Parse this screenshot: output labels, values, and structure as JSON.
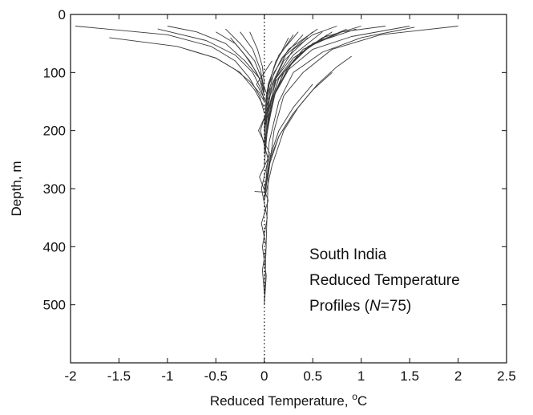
{
  "chart_data": {
    "type": "line",
    "xlabel": "Reduced Temperature, ",
    "xlabel_unit_sup": "o",
    "xlabel_unit": "C",
    "ylabel": "Depth, m",
    "xlim": [
      -2,
      2.5
    ],
    "ylim": [
      0,
      600
    ],
    "y_inverted": true,
    "grid": false,
    "x_ticks": [
      -2,
      -1.5,
      -1,
      -0.5,
      0,
      0.5,
      1,
      1.5,
      2,
      2.5
    ],
    "x_tick_labels": [
      "-2",
      "-1.5",
      "-1",
      "-0.5",
      "0",
      "0.5",
      "1",
      "1.5",
      "2",
      "2.5"
    ],
    "y_ticks": [
      0,
      100,
      200,
      300,
      400,
      500
    ],
    "y_tick_labels": [
      "0",
      "100",
      "200",
      "300",
      "400",
      "500"
    ],
    "zero_reference_line": {
      "x": 0,
      "style": "dotted"
    },
    "annotation": {
      "line1": "South India",
      "line2": "Reduced Temperature",
      "line3_prefix": "Profiles (",
      "line3_italic": "N",
      "line3_suffix": "=75)",
      "placement": "lower-right"
    },
    "profile_count": 75,
    "series": [
      {
        "x": [
          2.0,
          1.2,
          0.7,
          0.4,
          0.2,
          0.1,
          0.04,
          0.0
        ],
        "y": [
          20,
          35,
          60,
          100,
          140,
          200,
          280,
          500
        ]
      },
      {
        "x": [
          1.55,
          1.0,
          0.6,
          0.3,
          0.15,
          0.05,
          0.0
        ],
        "y": [
          22,
          40,
          65,
          100,
          150,
          220,
          320
        ]
      },
      {
        "x": [
          1.5,
          0.9,
          0.5,
          0.25,
          0.1,
          0.0
        ],
        "y": [
          20,
          38,
          60,
          95,
          140,
          220
        ]
      },
      {
        "x": [
          1.25,
          0.8,
          0.5,
          0.3,
          0.12,
          0.0
        ],
        "y": [
          20,
          30,
          50,
          80,
          130,
          220
        ]
      },
      {
        "x": [
          1.0,
          0.6,
          0.35,
          0.15,
          0.05,
          0.0
        ],
        "y": [
          20,
          40,
          70,
          110,
          160,
          260
        ]
      },
      {
        "x": [
          0.95,
          0.5,
          0.25,
          0.1,
          0.0
        ],
        "y": [
          25,
          50,
          90,
          140,
          230
        ]
      },
      {
        "x": [
          0.85,
          0.45,
          0.2,
          0.08,
          0.0
        ],
        "y": [
          25,
          55,
          100,
          150,
          230
        ]
      },
      {
        "x": [
          0.8,
          0.4,
          0.2,
          0.07,
          0.0
        ],
        "y": [
          30,
          60,
          100,
          150,
          240
        ]
      },
      {
        "x": [
          0.75,
          0.5,
          0.3,
          0.12,
          0.0
        ],
        "y": [
          20,
          35,
          60,
          110,
          200
        ]
      },
      {
        "x": [
          0.7,
          0.35,
          0.15,
          0.05,
          0.0
        ],
        "y": [
          30,
          70,
          110,
          160,
          240
        ]
      },
      {
        "x": [
          0.65,
          0.3,
          0.12,
          0.03,
          0.0
        ],
        "y": [
          35,
          75,
          115,
          170,
          240
        ]
      },
      {
        "x": [
          0.6,
          0.3,
          0.12,
          0.02,
          0.0
        ],
        "y": [
          30,
          70,
          110,
          160,
          220
        ]
      },
      {
        "x": [
          0.55,
          0.25,
          0.1,
          0.02,
          0.0
        ],
        "y": [
          25,
          60,
          100,
          150,
          210
        ]
      },
      {
        "x": [
          0.5,
          0.22,
          0.08,
          0.0
        ],
        "y": [
          30,
          70,
          120,
          200
        ]
      },
      {
        "x": [
          0.45,
          0.2,
          0.06,
          0.0
        ],
        "y": [
          40,
          80,
          130,
          200
        ]
      },
      {
        "x": [
          0.4,
          0.18,
          0.05,
          0.0
        ],
        "y": [
          35,
          75,
          120,
          190
        ]
      },
      {
        "x": [
          0.35,
          0.15,
          0.04,
          0.0
        ],
        "y": [
          30,
          70,
          120,
          190
        ]
      },
      {
        "x": [
          0.3,
          0.12,
          0.03,
          0.0
        ],
        "y": [
          35,
          80,
          130,
          200
        ]
      },
      {
        "x": [
          0.25,
          0.1,
          0.02,
          0.0
        ],
        "y": [
          40,
          90,
          140,
          200
        ]
      },
      {
        "x": [
          0.9,
          0.75,
          0.55,
          0.35,
          0.2,
          0.08,
          0.0
        ],
        "y": [
          72,
          90,
          120,
          160,
          200,
          260,
          320
        ]
      },
      {
        "x": [
          0.7,
          0.5,
          0.3,
          0.15,
          0.05,
          0.0
        ],
        "y": [
          100,
          130,
          170,
          210,
          260,
          320
        ]
      },
      {
        "x": [
          0.5,
          0.3,
          0.15,
          0.05,
          0.0
        ],
        "y": [
          120,
          160,
          200,
          250,
          320
        ]
      },
      {
        "x": [
          0.3,
          0.15,
          0.06,
          0.0
        ],
        "y": [
          170,
          210,
          250,
          300
        ]
      },
      {
        "x": [
          -1.95,
          -1.0,
          -0.55,
          -0.3,
          -0.15,
          -0.05,
          0.0
        ],
        "y": [
          20,
          35,
          55,
          80,
          110,
          140,
          170
        ]
      },
      {
        "x": [
          -1.6,
          -0.9,
          -0.5,
          -0.25,
          -0.1,
          0.0
        ],
        "y": [
          40,
          55,
          75,
          100,
          130,
          160
        ]
      },
      {
        "x": [
          -1.1,
          -0.6,
          -0.3,
          -0.12,
          -0.03,
          0.0
        ],
        "y": [
          25,
          45,
          70,
          100,
          130,
          150
        ]
      },
      {
        "x": [
          -1.0,
          -0.7,
          -0.4,
          -0.2,
          -0.05,
          0.0
        ],
        "y": [
          20,
          30,
          50,
          80,
          110,
          140
        ]
      },
      {
        "x": [
          -0.8,
          -0.5,
          -0.3,
          -0.15,
          -0.05,
          0.0
        ],
        "y": [
          60,
          75,
          95,
          115,
          135,
          150
        ]
      },
      {
        "x": [
          -0.5,
          -0.3,
          -0.15,
          -0.05,
          0.0
        ],
        "y": [
          30,
          50,
          80,
          110,
          140
        ]
      },
      {
        "x": [
          -0.4,
          -0.25,
          -0.1,
          -0.03,
          0.0
        ],
        "y": [
          25,
          50,
          80,
          110,
          140
        ]
      },
      {
        "x": [
          -0.35,
          -0.2,
          -0.08,
          0.0
        ],
        "y": [
          40,
          70,
          100,
          130
        ]
      },
      {
        "x": [
          -0.25,
          -0.12,
          -0.04,
          0.0
        ],
        "y": [
          30,
          60,
          95,
          130
        ]
      },
      {
        "x": [
          -0.15,
          -0.07,
          -0.02,
          0.0
        ],
        "y": [
          30,
          60,
          90,
          120
        ]
      },
      {
        "x": [
          0.08,
          -0.08,
          0.05,
          -0.06,
          0.06,
          -0.05,
          0.04,
          -0.03,
          0.02,
          -0.02,
          0.0
        ],
        "y": [
          80,
          120,
          160,
          200,
          240,
          280,
          320,
          360,
          400,
          440,
          480
        ]
      },
      {
        "x": [
          -0.05,
          0.05,
          -0.04,
          0.04,
          -0.03,
          0.03,
          -0.02,
          0.02,
          0.0
        ],
        "y": [
          100,
          150,
          200,
          250,
          300,
          350,
          400,
          450,
          500
        ]
      },
      {
        "x": [
          -0.1,
          0.0,
          0.02
        ],
        "y": [
          305,
          306,
          308
        ]
      }
    ]
  }
}
